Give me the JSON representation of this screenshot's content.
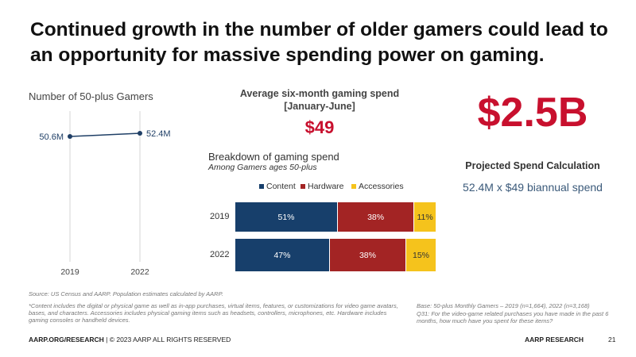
{
  "title": "Continued growth in the number of older gamers could lead to an opportunity for massive spending power on gaming.",
  "line_chart": {
    "title": "Number of 50-plus Gamers"
  },
  "spend": {
    "title_line1": "Average six-month gaming spend",
    "title_line2": "[January-June]",
    "value": "$49"
  },
  "projection": {
    "value": "$2.5B",
    "title": "Projected Spend Calculation",
    "calc": "52.4M x $49 biannual spend"
  },
  "breakdown": {
    "title": "Breakdown of gaming spend",
    "subtitle": "Among Gamers ages 50-plus"
  },
  "colors": {
    "content": "#173f6b",
    "hardware": "#a32424",
    "accessories": "#f5c31c",
    "line": "#1f3f66",
    "accent_red": "#c8102e"
  },
  "chart_data": [
    {
      "type": "line",
      "title": "Number of 50-plus Gamers",
      "x": [
        "2019",
        "2022"
      ],
      "series": [
        {
          "values": [
            50.6,
            52.4
          ],
          "labels": [
            "50.6M",
            "52.4M"
          ]
        }
      ],
      "grid": "vertical"
    },
    {
      "type": "bar",
      "orientation": "horizontal-stacked",
      "title": "Breakdown of gaming spend",
      "subtitle": "Among Gamers ages 50-plus",
      "categories": [
        "2019",
        "2022"
      ],
      "series": [
        {
          "name": "Content",
          "values": [
            51,
            47
          ],
          "labels": [
            "51%",
            "47%"
          ]
        },
        {
          "name": "Hardware",
          "values": [
            38,
            38
          ],
          "labels": [
            "38%",
            "38%"
          ]
        },
        {
          "name": "Accessories",
          "values": [
            11,
            15
          ],
          "labels": [
            "11%",
            "15%"
          ]
        }
      ],
      "legend": "top"
    }
  ],
  "notes": {
    "source": "Source: US Census and AARP.  Population estimates calculated by AARP.",
    "footnote": "*Content includes the digital or physical game as well as in-app purchases, virtual items, features, or customizations for video game avatars, bases, and characters. Accessories includes physical gaming items such as headsets, controllers, microphones, etc. Hardware includes gaming consoles or handheld devices.",
    "base": "Base: 50-plus Monthly Gamers – 2019 (n=1,664), 2022 (n=3,168)",
    "question": "Q31: For the video-game related purchases you have made in the past 6 months, how much have you spent for these items?"
  },
  "footer": {
    "site": "AARP.ORG/RESEARCH",
    "copyright": " | © 2023 AARP ALL RIGHTS RESERVED",
    "brand": "AARP RESEARCH",
    "page": "21"
  }
}
